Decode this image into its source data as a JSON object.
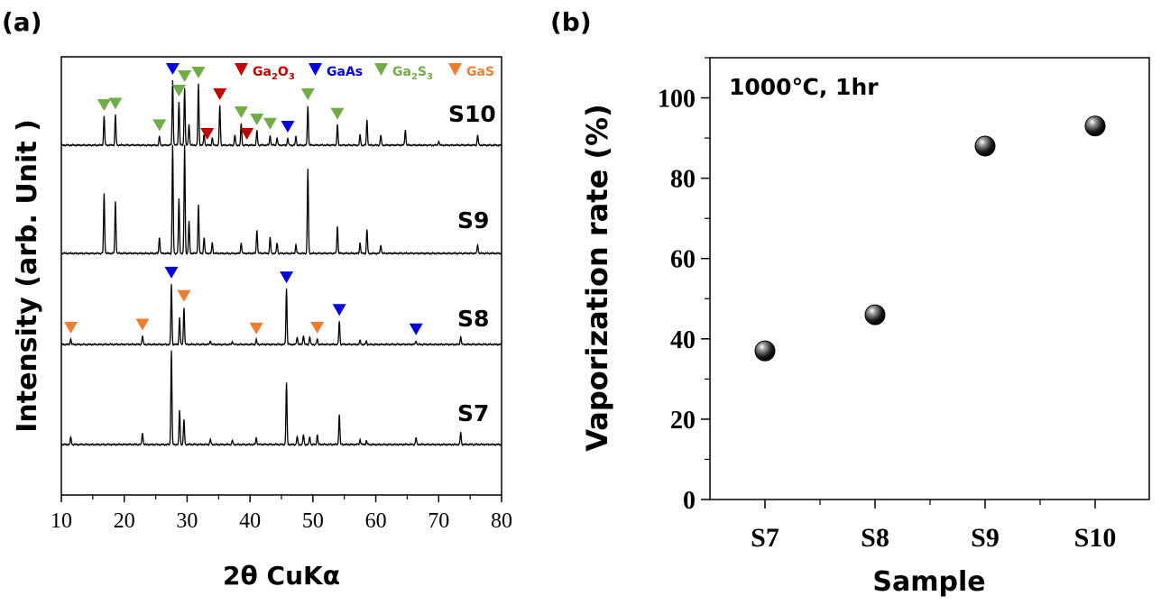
{
  "chart_data": [
    {
      "type": "line",
      "panel_label": "(a)",
      "title": "",
      "xlabel": "2θ CuKα",
      "ylabel": "Intensity (arb. Unit )",
      "xlim": [
        10,
        80
      ],
      "xticks": [
        "10",
        "20",
        "30",
        "40",
        "50",
        "60",
        "70",
        "80"
      ],
      "legend": [
        {
          "label": "Ga2O3",
          "base": "Ga",
          "sub1": "2",
          "mid": "O",
          "sub2": "3",
          "color": "#c00000"
        },
        {
          "label": "GaAs",
          "base": "GaAs",
          "sub1": "",
          "mid": "",
          "sub2": "",
          "color": "#0000e0"
        },
        {
          "label": "Ga2S3",
          "base": "Ga",
          "sub1": "2",
          "mid": "S",
          "sub2": "3",
          "color": "#70ad47"
        },
        {
          "label": "GaS",
          "base": "GaS",
          "sub1": "",
          "mid": "",
          "sub2": "",
          "color": "#ed7d31"
        }
      ],
      "series": [
        {
          "name": "S10",
          "peaks": [
            [
              16.8,
              0.4
            ],
            [
              18.6,
              0.42
            ],
            [
              25.6,
              0.12
            ],
            [
              27.7,
              0.9
            ],
            [
              28.7,
              0.6
            ],
            [
              29.6,
              0.8
            ],
            [
              30.3,
              0.3
            ],
            [
              31.8,
              0.85
            ],
            [
              32.7,
              0.15
            ],
            [
              34.0,
              0.1
            ],
            [
              35.2,
              0.55
            ],
            [
              37.6,
              0.14
            ],
            [
              38.6,
              0.3
            ],
            [
              41.1,
              0.2
            ],
            [
              43.2,
              0.14
            ],
            [
              44.3,
              0.1
            ],
            [
              46.0,
              0.1
            ],
            [
              47.3,
              0.12
            ],
            [
              49.2,
              0.55
            ],
            [
              53.9,
              0.28
            ],
            [
              57.5,
              0.14
            ],
            [
              58.6,
              0.35
            ],
            [
              60.8,
              0.14
            ],
            [
              64.7,
              0.22
            ],
            [
              70.0,
              0.06
            ],
            [
              76.2,
              0.14
            ]
          ]
        },
        {
          "name": "S9",
          "peaks": [
            [
              16.8,
              0.55
            ],
            [
              18.6,
              0.48
            ],
            [
              25.6,
              0.15
            ],
            [
              27.7,
              1.0
            ],
            [
              28.7,
              0.5
            ],
            [
              29.6,
              1.0
            ],
            [
              30.3,
              0.3
            ],
            [
              31.8,
              0.45
            ],
            [
              32.7,
              0.15
            ],
            [
              34.0,
              0.1
            ],
            [
              38.6,
              0.1
            ],
            [
              41.1,
              0.22
            ],
            [
              43.2,
              0.15
            ],
            [
              44.3,
              0.1
            ],
            [
              47.3,
              0.08
            ],
            [
              49.2,
              0.78
            ],
            [
              53.9,
              0.25
            ],
            [
              57.5,
              0.1
            ],
            [
              58.6,
              0.22
            ],
            [
              60.8,
              0.08
            ],
            [
              76.2,
              0.08
            ]
          ]
        },
        {
          "name": "S8",
          "peaks": [
            [
              11.5,
              0.07
            ],
            [
              22.9,
              0.11
            ],
            [
              27.5,
              0.78
            ],
            [
              28.8,
              0.35
            ],
            [
              29.5,
              0.48
            ],
            [
              33.7,
              0.05
            ],
            [
              37.2,
              0.04
            ],
            [
              41.0,
              0.06
            ],
            [
              45.8,
              0.72
            ],
            [
              47.5,
              0.1
            ],
            [
              48.5,
              0.12
            ],
            [
              49.5,
              0.1
            ],
            [
              50.7,
              0.07
            ],
            [
              54.2,
              0.3
            ],
            [
              57.5,
              0.05
            ],
            [
              58.5,
              0.04
            ],
            [
              66.4,
              0.05
            ],
            [
              73.5,
              0.1
            ]
          ]
        },
        {
          "name": "S7",
          "peaks": [
            [
              11.5,
              0.07
            ],
            [
              22.9,
              0.12
            ],
            [
              27.5,
              0.95
            ],
            [
              28.8,
              0.35
            ],
            [
              29.5,
              0.25
            ],
            [
              33.7,
              0.05
            ],
            [
              37.2,
              0.04
            ],
            [
              41.0,
              0.07
            ],
            [
              45.8,
              0.62
            ],
            [
              47.5,
              0.08
            ],
            [
              48.5,
              0.1
            ],
            [
              49.5,
              0.08
            ],
            [
              50.7,
              0.1
            ],
            [
              54.2,
              0.3
            ],
            [
              57.5,
              0.05
            ],
            [
              58.5,
              0.04
            ],
            [
              66.4,
              0.07
            ],
            [
              73.5,
              0.12
            ]
          ]
        }
      ],
      "markers": [
        {
          "series": "S10",
          "phase": "Ga2S3",
          "x": [
            16.8,
            18.6,
            25.6,
            28.7,
            29.6,
            31.8,
            38.6,
            41.1,
            43.2,
            49.2,
            53.9
          ]
        },
        {
          "series": "S10",
          "phase": "GaAs",
          "x": [
            27.7,
            46.0
          ]
        },
        {
          "series": "S10",
          "phase": "Ga2O3",
          "x": [
            33.2,
            35.2,
            39.5
          ]
        },
        {
          "series": "S8",
          "phase": "GaAs",
          "x": [
            27.5,
            45.8,
            54.2,
            66.4
          ]
        },
        {
          "series": "S8",
          "phase": "GaS",
          "x": [
            11.5,
            22.9,
            29.5,
            41.0,
            50.7
          ]
        }
      ]
    },
    {
      "type": "scatter",
      "panel_label": "(b)",
      "title": "",
      "annotation": "1000℃, 1hr",
      "xlabel": "Sample",
      "ylabel": "Vaporization rate (%)",
      "ylim": [
        0,
        110
      ],
      "yticks": [
        "0",
        "20",
        "40",
        "60",
        "80",
        "100"
      ],
      "categories": [
        "S7",
        "S8",
        "S9",
        "S10"
      ],
      "values": [
        37,
        46,
        88,
        93
      ]
    }
  ]
}
